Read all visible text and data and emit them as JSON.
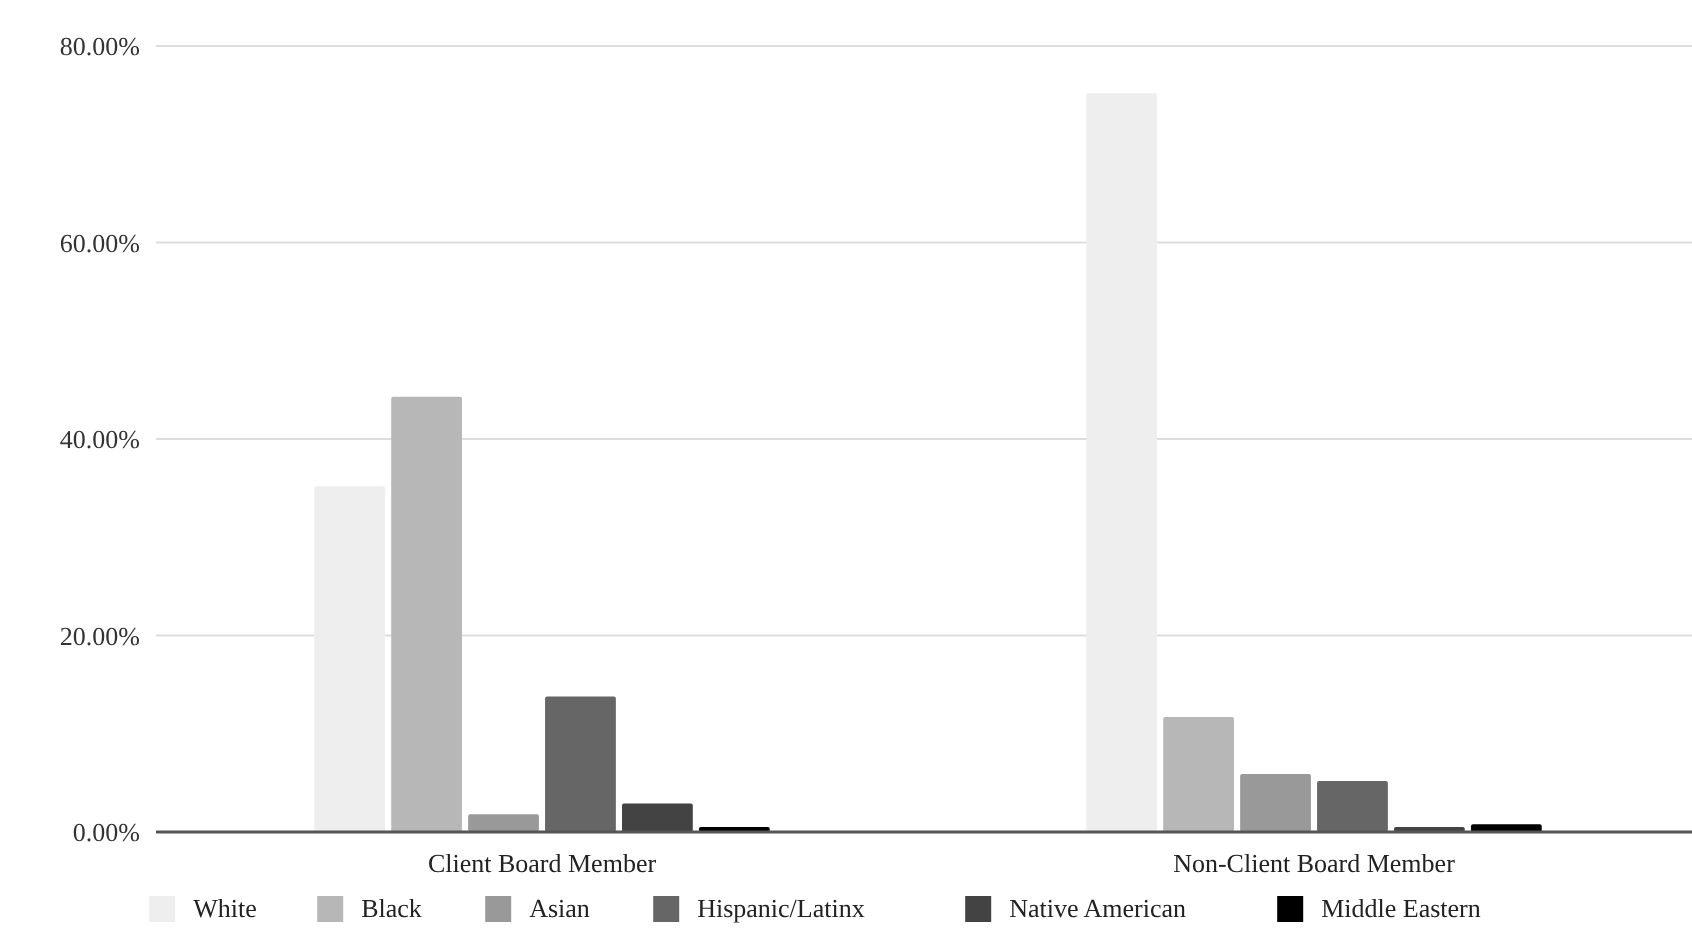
{
  "chart_data": {
    "type": "bar",
    "categories": [
      "Client Board Member",
      "Non-Client Board Member"
    ],
    "series": [
      {
        "name": "White",
        "color": "#eeeeee",
        "values": [
          35.2,
          75.2
        ]
      },
      {
        "name": "Black",
        "color": "#b7b7b7",
        "values": [
          44.3,
          11.7
        ]
      },
      {
        "name": "Asian",
        "color": "#999999",
        "values": [
          1.8,
          5.9
        ]
      },
      {
        "name": "Hispanic/Latinx",
        "color": "#666666",
        "values": [
          13.8,
          5.2
        ]
      },
      {
        "name": "Native American",
        "color": "#434343",
        "values": [
          2.9,
          0.5
        ]
      },
      {
        "name": "Middle Eastern",
        "color": "#000000",
        "values": [
          0.5,
          0.8
        ]
      }
    ],
    "ylim": [
      0,
      80
    ],
    "yticks": [
      {
        "value": 0,
        "label": "0.00%"
      },
      {
        "value": 20,
        "label": "20.00%"
      },
      {
        "value": 40,
        "label": "40.00%"
      },
      {
        "value": 60,
        "label": "60.00%"
      },
      {
        "value": 80,
        "label": "80.00%"
      }
    ],
    "grid": "y",
    "legend": "bottom"
  }
}
